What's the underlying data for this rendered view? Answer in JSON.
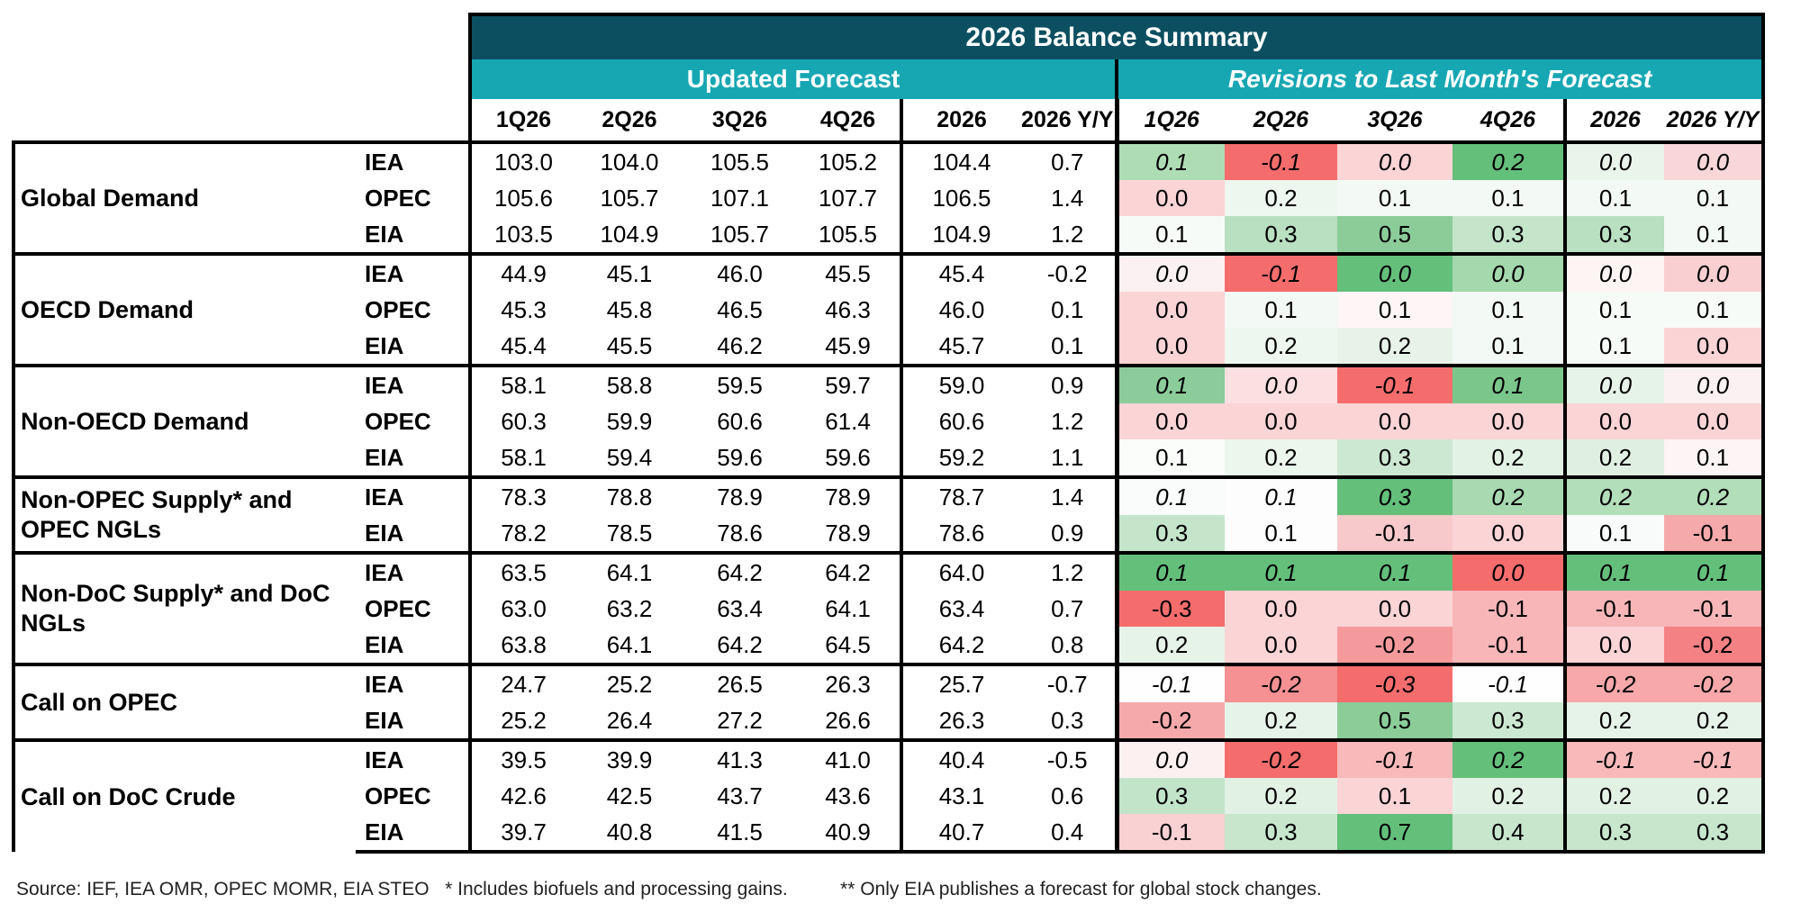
{
  "title": "2026 Balance Summary",
  "sections": {
    "updated": "Updated Forecast",
    "revisions": "Revisions to Last Month's Forecast"
  },
  "columns": [
    "1Q26",
    "2Q26",
    "3Q26",
    "4Q26",
    "2026",
    "2026 Y/Y"
  ],
  "colors": {
    "title_bg": "#0b4f60",
    "subheader_bg": "#16a7b3"
  },
  "groups": [
    {
      "label": "Global Demand",
      "rows": [
        {
          "source": "IEA",
          "values": [
            "103.0",
            "104.0",
            "105.5",
            "105.2",
            "104.4",
            "0.7"
          ],
          "revisions": [
            "0.1",
            "-0.1",
            "0.0",
            "0.2",
            "0.0",
            "0.0"
          ],
          "italic": true
        },
        {
          "source": "OPEC",
          "values": [
            "105.6",
            "105.7",
            "107.1",
            "107.7",
            "106.5",
            "1.4"
          ],
          "revisions": [
            "0.0",
            "0.2",
            "0.1",
            "0.1",
            "0.1",
            "0.1"
          ],
          "italic": false
        },
        {
          "source": "EIA",
          "values": [
            "103.5",
            "104.9",
            "105.7",
            "105.5",
            "104.9",
            "1.2"
          ],
          "revisions": [
            "0.1",
            "0.3",
            "0.5",
            "0.3",
            "0.3",
            "0.1"
          ],
          "italic": false
        }
      ]
    },
    {
      "label": "OECD Demand",
      "rows": [
        {
          "source": "IEA",
          "values": [
            "44.9",
            "45.1",
            "46.0",
            "45.5",
            "45.4",
            "-0.2"
          ],
          "revisions": [
            "0.0",
            "-0.1",
            "0.0",
            "0.0",
            "0.0",
            "0.0"
          ],
          "italic": true
        },
        {
          "source": "OPEC",
          "values": [
            "45.3",
            "45.8",
            "46.5",
            "46.3",
            "46.0",
            "0.1"
          ],
          "revisions": [
            "0.0",
            "0.1",
            "0.1",
            "0.1",
            "0.1",
            "0.1"
          ],
          "italic": false
        },
        {
          "source": "EIA",
          "values": [
            "45.4",
            "45.5",
            "46.2",
            "45.9",
            "45.7",
            "0.1"
          ],
          "revisions": [
            "0.0",
            "0.2",
            "0.2",
            "0.1",
            "0.1",
            "0.0"
          ],
          "italic": false
        }
      ]
    },
    {
      "label": "Non-OECD Demand",
      "rows": [
        {
          "source": "IEA",
          "values": [
            "58.1",
            "58.8",
            "59.5",
            "59.7",
            "59.0",
            "0.9"
          ],
          "revisions": [
            "0.1",
            "0.0",
            "-0.1",
            "0.1",
            "0.0",
            "0.0"
          ],
          "italic": true
        },
        {
          "source": "OPEC",
          "values": [
            "60.3",
            "59.9",
            "60.6",
            "61.4",
            "60.6",
            "1.2"
          ],
          "revisions": [
            "0.0",
            "0.0",
            "0.0",
            "0.0",
            "0.0",
            "0.0"
          ],
          "italic": false
        },
        {
          "source": "EIA",
          "values": [
            "58.1",
            "59.4",
            "59.6",
            "59.6",
            "59.2",
            "1.1"
          ],
          "revisions": [
            "0.1",
            "0.2",
            "0.3",
            "0.2",
            "0.2",
            "0.1"
          ],
          "italic": false
        }
      ]
    },
    {
      "label": "Non-OPEC Supply* and OPEC NGLs",
      "rows": [
        {
          "source": "IEA",
          "values": [
            "78.3",
            "78.8",
            "78.9",
            "78.9",
            "78.7",
            "1.4"
          ],
          "revisions": [
            "0.1",
            "0.1",
            "0.3",
            "0.2",
            "0.2",
            "0.2"
          ],
          "italic": true
        },
        {
          "source": "EIA",
          "values": [
            "78.2",
            "78.5",
            "78.6",
            "78.9",
            "78.6",
            "0.9"
          ],
          "revisions": [
            "0.3",
            "0.1",
            "-0.1",
            "0.0",
            "0.1",
            "-0.1"
          ],
          "italic": false
        }
      ]
    },
    {
      "label": "Non-DoC Supply* and DoC NGLs",
      "rows": [
        {
          "source": "IEA",
          "values": [
            "63.5",
            "64.1",
            "64.2",
            "64.2",
            "64.0",
            "1.2"
          ],
          "revisions": [
            "0.1",
            "0.1",
            "0.1",
            "0.0",
            "0.1",
            "0.1"
          ],
          "italic": true
        },
        {
          "source": "OPEC",
          "values": [
            "63.0",
            "63.2",
            "63.4",
            "64.1",
            "63.4",
            "0.7"
          ],
          "revisions": [
            "-0.3",
            "0.0",
            "0.0",
            "-0.1",
            "-0.1",
            "-0.1"
          ],
          "italic": false
        },
        {
          "source": "EIA",
          "values": [
            "63.8",
            "64.1",
            "64.2",
            "64.5",
            "64.2",
            "0.8"
          ],
          "revisions": [
            "0.2",
            "0.0",
            "-0.2",
            "-0.1",
            "0.0",
            "-0.2"
          ],
          "italic": false
        }
      ]
    },
    {
      "label": "Call on OPEC",
      "rows": [
        {
          "source": "IEA",
          "values": [
            "24.7",
            "25.2",
            "26.5",
            "26.3",
            "25.7",
            "-0.7"
          ],
          "revisions": [
            "-0.1",
            "-0.2",
            "-0.3",
            "-0.1",
            "-0.2",
            "-0.2"
          ],
          "italic": true
        },
        {
          "source": "EIA",
          "values": [
            "25.2",
            "26.4",
            "27.2",
            "26.6",
            "26.3",
            "0.3"
          ],
          "revisions": [
            "-0.2",
            "0.2",
            "0.5",
            "0.3",
            "0.2",
            "0.2"
          ],
          "italic": false
        }
      ]
    },
    {
      "label": "Call on DoC Crude",
      "rows": [
        {
          "source": "IEA",
          "values": [
            "39.5",
            "39.9",
            "41.3",
            "41.0",
            "40.4",
            "-0.5"
          ],
          "revisions": [
            "0.0",
            "-0.2",
            "-0.1",
            "0.2",
            "-0.1",
            "-0.1"
          ],
          "italic": true
        },
        {
          "source": "OPEC",
          "values": [
            "42.6",
            "42.5",
            "43.7",
            "43.6",
            "43.1",
            "0.6"
          ],
          "revisions": [
            "0.3",
            "0.2",
            "0.1",
            "0.2",
            "0.2",
            "0.2"
          ],
          "italic": false
        },
        {
          "source": "EIA",
          "values": [
            "39.7",
            "40.8",
            "41.5",
            "40.9",
            "40.7",
            "0.4"
          ],
          "revisions": [
            "-0.1",
            "0.3",
            "0.7",
            "0.4",
            "0.3",
            "0.3"
          ],
          "italic": false
        }
      ]
    }
  ],
  "revision_colors": [
    [
      "#aedcb5",
      "#f46d6c",
      "#fbd4d6",
      "#64bf7b",
      "#e9f5eb",
      "#f9d6d8"
    ],
    [
      "#fbd4d6",
      "#edf7ef",
      "#f3f9f4",
      "#f3f9f4",
      "#f3f9f4",
      "#f3f9f4"
    ],
    [
      "#f7fbf8",
      "#b9e0c0",
      "#8bcc99",
      "#c4e5ca",
      "#b9e0c0",
      "#f3f9f4"
    ],
    [
      "#fcf1f2",
      "#f46d6c",
      "#64bf7b",
      "#a4d8ad",
      "#fdf4f4",
      "#f9cfd1"
    ],
    [
      "#fbd4d6",
      "#f3f9f4",
      "#fdf5f6",
      "#f3f9f4",
      "#f7fbf8",
      "#f7fbf8"
    ],
    [
      "#fbd4d6",
      "#edf7ef",
      "#e7f3e9",
      "#f3f9f4",
      "#f7fbf8",
      "#fbd4d6"
    ],
    [
      "#8ccc9a",
      "#fcdfe1",
      "#f46d6c",
      "#7bc68a",
      "#e5f3e8",
      "#fcf1f2"
    ],
    [
      "#fbd4d6",
      "#fbd4d6",
      "#fbd4d6",
      "#fbd4d6",
      "#fbd4d6",
      "#fbd4d6"
    ],
    [
      "#fbfdfb",
      "#ebf6ed",
      "#cde8d2",
      "#e2f2e5",
      "#dff0e2",
      "#fcf4f5"
    ],
    [
      "#f9fcfa",
      "#fcfdfc",
      "#64bf7b",
      "#a8d9b1",
      "#b2deba",
      "#b2deba"
    ],
    [
      "#c4e5ca",
      "#fcfdfc",
      "#f8c9cb",
      "#fbd4d6",
      "#f8fbf9",
      "#f6a9ab"
    ],
    [
      "#64bf7b",
      "#64bf7b",
      "#64bf7b",
      "#f46d6c",
      "#64bf7b",
      "#64bf7b"
    ],
    [
      "#f46d6c",
      "#fbd4d6",
      "#fbd4d6",
      "#f8b6b8",
      "#f8b6b8",
      "#f8b6b8"
    ],
    [
      "#e6f3e9",
      "#fbd4d6",
      "#f59a9c",
      "#f8b6b8",
      "#fbd4d6",
      "#f48183"
    ],
    [
      "#fefefe",
      "#f59192",
      "#f46d6c",
      "#fefefe",
      "#f7a8aa",
      "#f7a8aa"
    ],
    [
      "#f6a9ab",
      "#e6f3e8",
      "#8bcc99",
      "#cde8d2",
      "#e6f3e8",
      "#e6f3e8"
    ],
    [
      "#fdf0f1",
      "#f46d6c",
      "#f8b9bb",
      "#64bf7b",
      "#f8b9bb",
      "#f8b9bb"
    ],
    [
      "#c2e4c8",
      "#e1f1e4",
      "#fbd4d6",
      "#e1f1e4",
      "#e1f1e4",
      "#e1f1e4"
    ],
    [
      "#f9d1d3",
      "#c7e6cc",
      "#64bf7b",
      "#c7e6cc",
      "#c7e6cc",
      "#c7e6cc"
    ]
  ],
  "footnote": "Source: IEF, IEA OMR, OPEC MOMR, EIA STEO   * Includes biofuels and processing gains.          ** Only EIA publishes a forecast for global stock changes."
}
